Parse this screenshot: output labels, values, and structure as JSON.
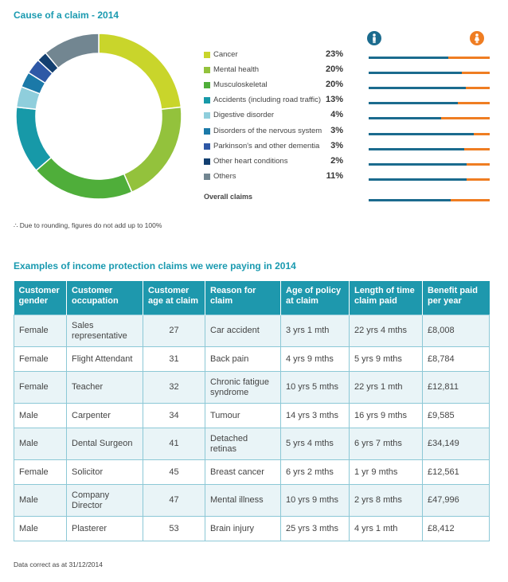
{
  "titles": {
    "cause": "Cause of a claim - 2014",
    "examples": "Examples of income protection claims we were paying in 2014"
  },
  "colors": {
    "accent": "#1a9ab0",
    "male": "#1b6b8e",
    "female": "#ef7d22",
    "header_bg": "#1e98ad",
    "row_alt": "#e9f4f7"
  },
  "icons": {
    "male": "male-person-icon",
    "female": "female-person-icon"
  },
  "chart_data": {
    "type": "pie",
    "title": "Cause of a claim - 2014",
    "labels": [
      "Cancer",
      "Mental health",
      "Musculoskeletal",
      "Accidents (including road traffic)",
      "Digestive disorder",
      "Disorders of the nervous system",
      "Parkinson's and other dementia",
      "Other heart conditions",
      "Others"
    ],
    "values": [
      23,
      20,
      20,
      13,
      4,
      3,
      3,
      2,
      11
    ],
    "value_labels": [
      "23%",
      "20%",
      "20%",
      "13%",
      "4%",
      "3%",
      "3%",
      "2%",
      "11%"
    ],
    "colors": [
      "#c9d52b",
      "#93c23c",
      "#4fae3a",
      "#1799a8",
      "#8fcedc",
      "#1b79a8",
      "#2e58a6",
      "#123f70",
      "#728691"
    ],
    "hole": 0.76,
    "legend_position": "right",
    "gender_split": {
      "male_share": [
        0.66,
        0.77,
        0.8,
        0.74,
        0.6,
        0.87,
        0.79,
        0.81,
        0.81
      ],
      "overall_male_share": 0.68
    }
  },
  "legend": {
    "overall_label": "Overall claims"
  },
  "notes": {
    "rounding": "∴ Due to rounding, figures do not add up to 100%",
    "data_date": "Data correct as at 31/12/2014"
  },
  "table": {
    "headers": [
      "Customer gender",
      "Customer occupation",
      "Customer age at claim",
      "Reason for claim",
      "Age of policy at claim",
      "Length of time claim paid",
      "Benefit paid per year"
    ],
    "rows": [
      [
        "Female",
        "Sales representative",
        "27",
        "Car accident",
        "3 yrs 1 mth",
        "22 yrs 4 mths",
        "£8,008"
      ],
      [
        "Female",
        "Flight Attendant",
        "31",
        "Back pain",
        "4 yrs 9 mths",
        "5 yrs 9 mths",
        "£8,784"
      ],
      [
        "Female",
        "Teacher",
        "32",
        "Chronic fatigue syndrome",
        "10 yrs 5 mths",
        "22 yrs 1 mth",
        "£12,811"
      ],
      [
        "Male",
        "Carpenter",
        "34",
        "Tumour",
        "14 yrs 3 mths",
        "16 yrs 9 mths",
        "£9,585"
      ],
      [
        "Male",
        "Dental Surgeon",
        "41",
        "Detached retinas",
        "5 yrs 4 mths",
        "6 yrs 7 mths",
        "£34,149"
      ],
      [
        "Female",
        "Solicitor",
        "45",
        "Breast cancer",
        "6 yrs 2 mths",
        "1 yr 9 mths",
        "£12,561"
      ],
      [
        "Male",
        "Company Director",
        "47",
        "Mental illness",
        "10 yrs 9 mths",
        "2 yrs 8 mths",
        "£47,996"
      ],
      [
        "Male",
        "Plasterer",
        "53",
        "Brain injury",
        "25 yrs 3 mths",
        "4 yrs 1 mth",
        "£8,412"
      ]
    ]
  }
}
